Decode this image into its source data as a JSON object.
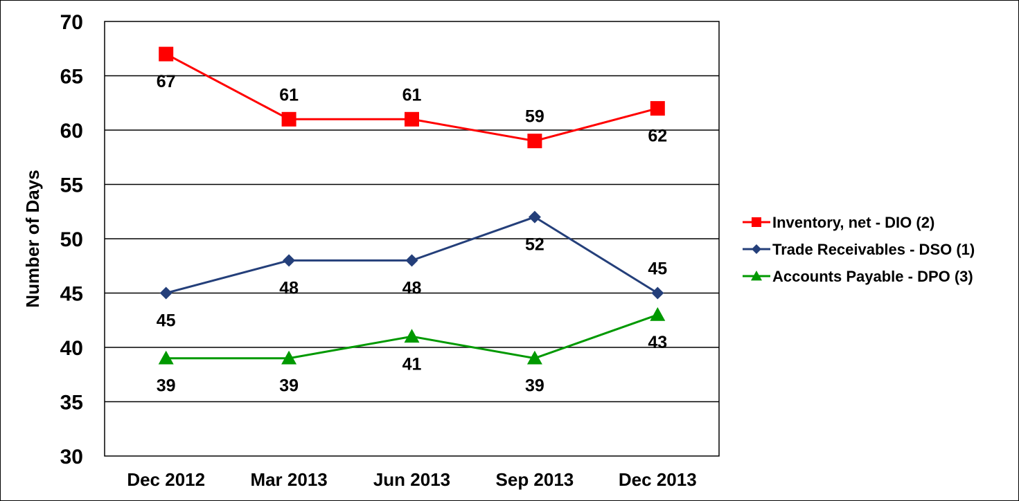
{
  "chart_data": {
    "type": "line",
    "title": "",
    "xlabel": "",
    "ylabel": "Number of Days",
    "ylim": [
      30,
      70
    ],
    "yticks": [
      30,
      35,
      40,
      45,
      50,
      55,
      60,
      65,
      70
    ],
    "grid": true,
    "legend_position": "right",
    "categories": [
      "Dec 2012",
      "Mar 2013",
      "Jun 2013",
      "Sep 2013",
      "Dec 2013"
    ],
    "series": [
      {
        "name": "Inventory, net - DIO (2)",
        "values": [
          67,
          61,
          61,
          59,
          62
        ],
        "color": "#ff0000",
        "marker": "square",
        "label_position": [
          "below",
          "above",
          "above",
          "above",
          "below"
        ]
      },
      {
        "name": "Trade Receivables - DSO (1)",
        "values": [
          45,
          48,
          48,
          52,
          45
        ],
        "color": "#243f7a",
        "marker": "diamond",
        "label_position": [
          "below",
          "below",
          "below",
          "below",
          "above"
        ]
      },
      {
        "name": "Accounts Payable - DPO (3)",
        "values": [
          39,
          39,
          41,
          39,
          43
        ],
        "color": "#009900",
        "marker": "triangle",
        "label_position": [
          "below",
          "below",
          "below",
          "below",
          "below"
        ]
      }
    ]
  }
}
